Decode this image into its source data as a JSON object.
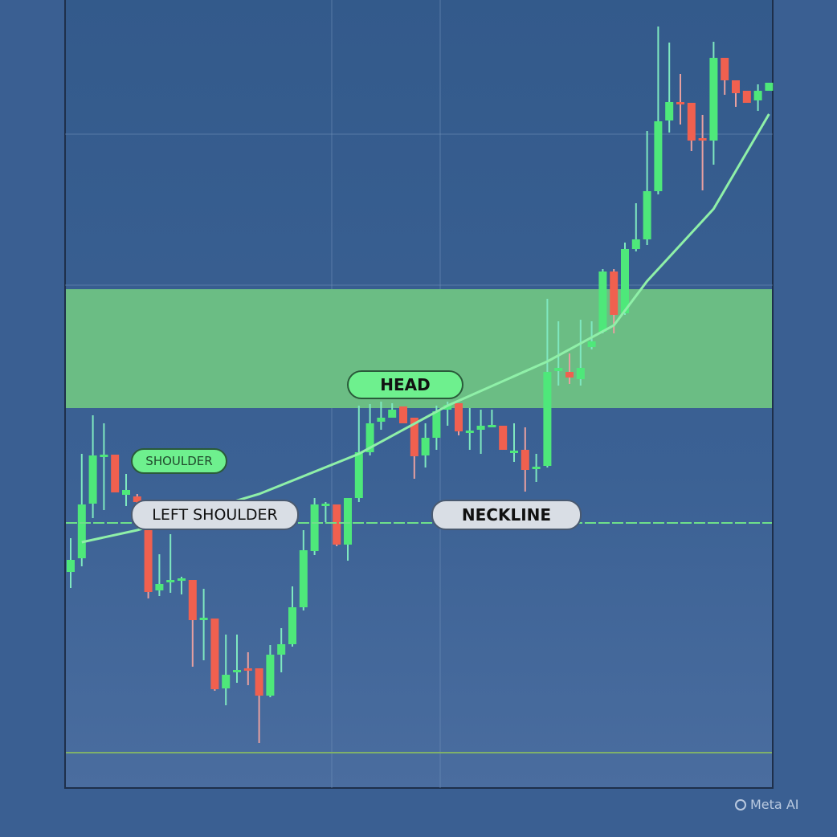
{
  "chart_data": {
    "type": "candlestick",
    "title": "",
    "xlabel": "",
    "ylabel": "",
    "grid": true,
    "colors": {
      "up": "#4ee87a",
      "down": "#f0604f",
      "zone": "#6bbd84",
      "ma": "#8ff0a8",
      "neckline": "#6ee08a"
    },
    "candles_ohlc": [
      [
        28.8,
        33,
        26.8,
        30.3
      ],
      [
        30.5,
        43.5,
        29.5,
        37.2
      ],
      [
        37.3,
        48.3,
        35.5,
        43.3
      ],
      [
        43.2,
        47.3,
        36.5,
        43.4
      ],
      [
        43.4,
        43.4,
        38.7,
        38.7
      ],
      [
        38.4,
        41,
        37,
        39
      ],
      [
        38.2,
        38.5,
        37,
        37.5
      ],
      [
        34,
        34.5,
        25.5,
        26.3
      ],
      [
        26.5,
        31,
        25.8,
        27.3
      ],
      [
        27.6,
        33.5,
        26.2,
        27.8
      ],
      [
        27.9,
        28.2,
        26,
        28
      ],
      [
        27.8,
        27.8,
        17,
        22.8
      ],
      [
        22.9,
        26.7,
        17.8,
        23.1
      ],
      [
        23,
        23,
        14,
        14.2
      ],
      [
        14.3,
        21,
        12.2,
        16
      ],
      [
        16.4,
        21,
        15,
        16.6
      ],
      [
        16.8,
        18.8,
        14.7,
        16.6
      ],
      [
        16.8,
        16.8,
        7.5,
        13.4
      ],
      [
        13.4,
        19.7,
        13.2,
        18.5
      ],
      [
        18.5,
        21.8,
        16.3,
        19.8
      ],
      [
        19.8,
        27,
        19.5,
        24.4
      ],
      [
        24.4,
        34,
        24,
        31.5
      ],
      [
        31.4,
        38,
        30.9,
        37.2
      ],
      [
        37.1,
        37.5,
        35,
        37.3
      ],
      [
        37.2,
        37.2,
        32,
        32.2
      ],
      [
        32.2,
        38,
        30.2,
        38
      ],
      [
        38,
        49.5,
        37.5,
        43.7
      ],
      [
        43.7,
        49.7,
        43.3,
        47.3
      ],
      [
        47.5,
        50,
        46.5,
        48
      ],
      [
        48,
        49.8,
        48,
        49
      ],
      [
        49.4,
        49.4,
        47.3,
        47.3
      ],
      [
        48,
        48,
        40.4,
        43.2
      ],
      [
        43.3,
        47.3,
        41.8,
        45.5
      ],
      [
        45.5,
        49.5,
        44,
        48.8
      ],
      [
        49,
        50,
        47,
        49.6
      ],
      [
        49.8,
        49.8,
        45.8,
        46.3
      ],
      [
        46.2,
        49.2,
        44,
        46.4
      ],
      [
        46.5,
        49,
        43.5,
        47
      ],
      [
        47,
        49,
        47,
        47.1
      ],
      [
        47,
        47,
        44,
        44
      ],
      [
        43.8,
        47.3,
        42.5,
        43.9
      ],
      [
        44,
        46.8,
        38.8,
        41.5
      ],
      [
        41.7,
        43.5,
        40,
        41.9
      ],
      [
        42,
        62.8,
        41.8,
        53.7
      ],
      [
        53.8,
        60,
        52,
        54.2
      ],
      [
        53.7,
        56,
        52.2,
        53
      ],
      [
        52.8,
        60.2,
        52,
        54.2
      ],
      [
        56.8,
        60,
        56.5,
        57.5
      ],
      [
        58.7,
        66.5,
        58.5,
        66.2
      ],
      [
        66.2,
        66.5,
        58.5,
        60.8
      ],
      [
        61,
        69.8,
        60.8,
        69
      ],
      [
        69,
        74.7,
        68.7,
        70.2
      ],
      [
        70.2,
        83.7,
        69.5,
        76.2
      ],
      [
        76.2,
        96.7,
        75.8,
        84.9
      ],
      [
        85,
        94.7,
        83.5,
        87.3
      ],
      [
        87.3,
        90.8,
        84.5,
        87.1
      ],
      [
        87.2,
        87.2,
        81.2,
        82.5
      ],
      [
        82.8,
        85.7,
        76.3,
        82.6
      ],
      [
        82.5,
        94.8,
        79.5,
        92.8
      ],
      [
        92.8,
        92.8,
        88.2,
        90
      ],
      [
        90,
        90,
        86.7,
        88.4
      ],
      [
        88.7,
        88.7,
        87.2,
        87.2
      ],
      [
        87.5,
        89.5,
        86.2,
        88.7
      ],
      [
        88.7,
        89.7,
        88.7,
        89.7
      ]
    ],
    "moving_average": [
      [
        1,
        32.5
      ],
      [
        6,
        34
      ],
      [
        17,
        38.5
      ],
      [
        26,
        43.5
      ],
      [
        34,
        49.5
      ],
      [
        43,
        55
      ],
      [
        49,
        59.5
      ],
      [
        52,
        65
      ],
      [
        58,
        74
      ],
      [
        63,
        85.8
      ]
    ],
    "neckline": 34.9,
    "zone": [
      49.2,
      64
    ],
    "baseline": 6.3,
    "annotations": {
      "shoulder": "SHOULDER",
      "left_shoulder": "LEFT SHOULDER",
      "head": "HEAD",
      "neckline": "NECKLINE"
    }
  },
  "watermark": "Meta AI"
}
